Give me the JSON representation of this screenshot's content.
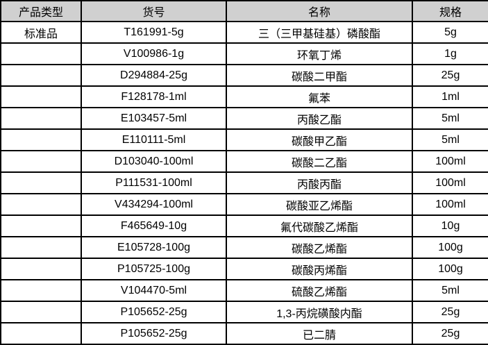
{
  "table": {
    "header_bg": "#d0d0d0",
    "border_color": "#000000",
    "columns": [
      {
        "label": "产品类型"
      },
      {
        "label": "货号"
      },
      {
        "label": "名称"
      },
      {
        "label": "规格"
      }
    ],
    "rows": [
      {
        "product_type": "标准品",
        "code": "T161991-5g",
        "name": "三（三甲基硅基）磷酸酯",
        "spec": "5g"
      },
      {
        "product_type": "",
        "code": "V100986-1g",
        "name": "环氧丁烯",
        "spec": "1g"
      },
      {
        "product_type": "",
        "code": "D294884-25g",
        "name": "碳酸二甲酯",
        "spec": "25g"
      },
      {
        "product_type": "",
        "code": "F128178-1ml",
        "name": "氟苯",
        "spec": "1ml"
      },
      {
        "product_type": "",
        "code": "E103457-5ml",
        "name": "丙酸乙酯",
        "spec": "5ml"
      },
      {
        "product_type": "",
        "code": "E110111-5ml",
        "name": "碳酸甲乙酯",
        "spec": "5ml"
      },
      {
        "product_type": "",
        "code": "D103040-100ml",
        "name": "碳酸二乙酯",
        "spec": "100ml"
      },
      {
        "product_type": "",
        "code": "P111531-100ml",
        "name": "丙酸丙酯",
        "spec": "100ml"
      },
      {
        "product_type": "",
        "code": "V434294-100ml",
        "name": "碳酸亚乙烯酯",
        "spec": "100ml"
      },
      {
        "product_type": "",
        "code": "F465649-10g",
        "name": "氟代碳酸乙烯酯",
        "spec": "10g"
      },
      {
        "product_type": "",
        "code": "E105728-100g",
        "name": "碳酸乙烯酯",
        "spec": "100g"
      },
      {
        "product_type": "",
        "code": "P105725-100g",
        "name": "碳酸丙烯酯",
        "spec": "100g"
      },
      {
        "product_type": "",
        "code": "V104470-5ml",
        "name": "硫酸乙烯酯",
        "spec": "5ml"
      },
      {
        "product_type": "",
        "code": "P105652-25g",
        "name": "1,3-丙烷磺酸内酯",
        "spec": "25g"
      },
      {
        "product_type": "",
        "code": "P105652-25g",
        "name": "已二腈",
        "spec": "25g"
      }
    ]
  }
}
